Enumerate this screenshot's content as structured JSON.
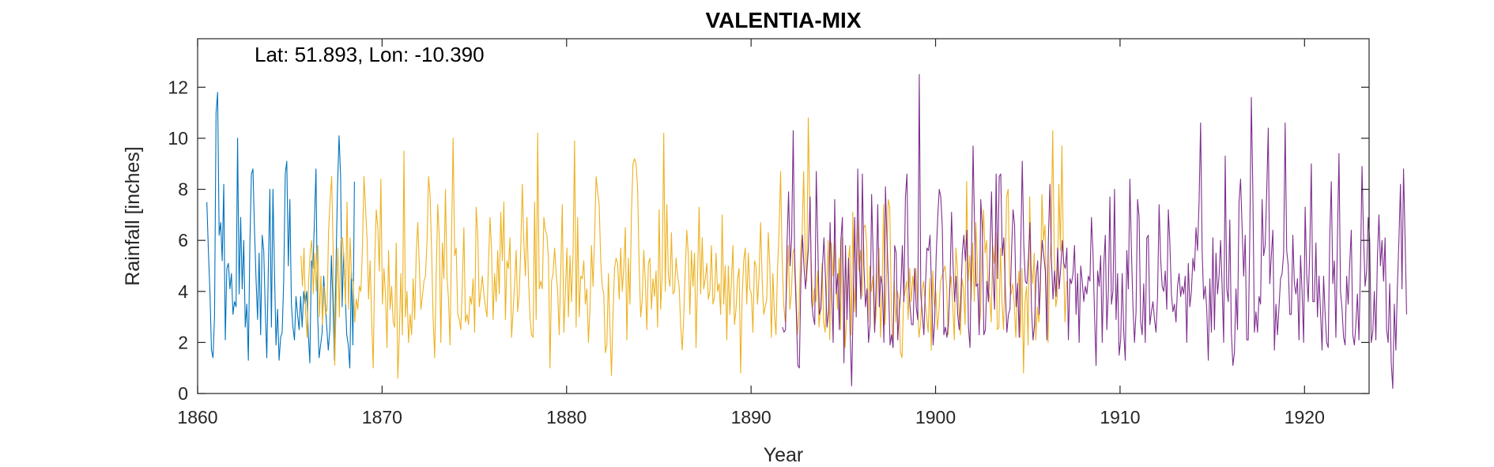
{
  "chart_data": {
    "type": "line",
    "title": "VALENTIA-MIX",
    "annotation": "Lat: 51.893, Lon: -10.390",
    "xlabel": "Year",
    "ylabel": "Rainfall [inches]",
    "xlim": [
      1860,
      1923.5
    ],
    "ylim": [
      0,
      13.9
    ],
    "xticks": [
      1860,
      1870,
      1880,
      1890,
      1900,
      1910,
      1920
    ],
    "yticks": [
      0,
      2,
      4,
      6,
      8,
      10,
      12
    ],
    "grid": false,
    "box": true,
    "series": [
      {
        "color": "#0072BD",
        "x_start": 1860.5,
        "values": [
          7.5,
          5.6,
          4.0,
          1.7,
          1.4,
          3.0,
          11.0,
          11.8,
          6.2,
          6.7,
          5.2,
          8.2,
          2.1,
          4.9,
          5.1,
          4.1,
          4.7,
          3.1,
          3.6,
          3.4,
          10.0,
          3.9,
          6.9,
          4.1,
          6.0,
          2.6,
          3.5,
          1.3,
          5.9,
          8.6,
          8.8,
          6.4,
          4.5,
          2.9,
          5.5,
          2.3,
          6.2,
          5.6,
          3.3,
          1.4,
          4.9,
          8.0,
          2.6,
          8.0,
          4.8,
          1.9,
          3.3,
          1.3,
          2.2,
          2.4,
          4.4,
          8.6,
          9.1,
          5.0,
          7.6,
          3.5,
          2.6,
          2.1,
          3.8,
          3.1,
          2.5,
          3.8,
          2.6,
          4.0,
          3.5,
          4.0,
          2.3,
          1.2,
          5.2,
          4.9,
          6.8,
          8.8,
          3.2,
          1.4,
          1.9,
          2.4,
          4.6,
          3.6,
          2.6,
          1.7,
          2.5,
          5.4,
          3.6,
          1.3,
          4.9,
          8.1,
          10.1,
          8.5,
          3.4,
          5.5,
          3.9,
          2.3,
          1.9,
          1.0,
          4.8,
          1.9,
          8.3
        ]
      },
      {
        "color": "#EDB120",
        "x_start": 1865.6,
        "values": [
          5.4,
          4.2,
          5.7,
          3.2,
          2.2,
          4.4,
          5.5,
          6.0,
          3.9,
          5.5,
          4.0,
          5.8,
          3.0,
          4.6,
          2.7,
          4.2,
          3.1,
          3.3,
          6.4,
          7.6,
          8.5,
          5.4,
          1.1,
          3.8,
          5.7,
          3.0,
          6.0,
          6.1,
          5.3,
          3.5,
          7.5,
          3.3,
          6.1,
          4.5,
          4.4,
          2.8,
          3.7,
          3.3,
          4.2,
          4.0,
          5.7,
          8.5,
          7.3,
          6.1,
          3.7,
          5.2,
          2.9,
          1.0,
          5.1,
          7.2,
          6.5,
          4.8,
          8.4,
          3.5,
          4.9,
          3.9,
          1.8,
          5.6,
          3.3,
          4.2,
          2.8,
          2.6,
          5.9,
          0.6,
          2.3,
          4.7,
          2.3,
          9.5,
          3.0,
          4.0,
          2.0,
          3.1,
          2.3,
          4.5,
          2.9,
          5.5,
          6.7,
          5.0,
          3.3,
          3.8,
          4.4,
          4.6,
          5.9,
          8.5,
          7.8,
          5.6,
          2.9,
          1.4,
          4.7,
          7.4,
          6.1,
          2.0,
          5.9,
          4.5,
          8.0,
          4.6,
          3.7,
          1.9,
          6.2,
          10.0,
          5.4,
          5.7,
          3.1,
          2.9,
          2.5,
          4.3,
          6.5,
          2.8,
          3.1,
          2.7,
          3.8,
          3.5,
          4.5,
          2.4,
          7.3,
          6.2,
          3.4,
          4.0,
          4.6,
          3.9,
          3.4,
          3.0,
          5.1,
          6.9,
          5.6,
          2.9,
          4.7,
          3.6,
          5.6,
          3.9,
          7.1,
          5.2,
          7.5,
          2.9,
          5.2,
          4.9,
          6.1,
          2.2,
          3.2,
          4.3,
          5.6,
          3.2,
          3.9,
          5.7,
          8.2,
          5.9,
          4.6,
          6.9,
          4.5,
          3.0,
          2.3,
          2.2,
          7.5,
          2.9,
          10.2,
          4.1,
          4.4,
          4.1,
          6.9,
          6.4,
          6.2,
          5.3,
          1.0,
          4.4,
          4.7,
          5.7,
          4.7,
          4.0,
          2.3,
          4.8,
          7.4,
          2.4,
          3.9,
          5.7,
          3.0,
          5.4,
          3.6,
          5.5,
          9.9,
          2.6,
          6.9,
          3.0,
          4.6,
          4.5,
          5.2,
          3.5,
          4.1,
          2.0,
          3.3,
          5.8,
          4.2,
          6.1,
          8.5,
          7.9,
          7.4,
          5.2,
          4.2,
          3.9,
          1.6,
          1.9,
          4.7,
          2.6,
          0.7,
          3.1,
          4.9,
          5.3,
          5.1,
          3.7,
          5.7,
          4.0,
          4.9,
          6.5,
          2.1,
          5.3,
          3.5,
          7.1,
          9.0,
          9.2,
          9.0,
          8.0,
          5.0,
          3.0,
          3.7,
          5.6,
          4.4,
          2.5,
          5.1,
          5.3,
          3.3,
          4.5,
          3.8,
          4.8,
          2.6,
          7.2,
          3.3,
          4.7,
          10.2,
          4.0,
          7.4,
          4.6,
          4.2,
          6.3,
          3.9,
          4.0,
          5.3,
          4.6,
          4.2,
          2.7,
          1.7,
          3.0,
          4.9,
          6.4,
          5.4,
          3.1,
          5.6,
          4.2,
          5.5,
          1.8,
          4.6,
          7.3,
          3.9,
          6.1,
          4.1,
          4.5,
          5.1,
          3.7,
          4.0,
          5.8,
          3.5,
          3.8,
          5.5,
          4.0,
          4.3,
          3.1,
          7.0,
          3.5,
          5.0,
          2.1,
          5.0,
          3.1,
          4.4,
          5.8,
          2.7,
          3.3,
          4.5,
          4.9,
          0.8,
          3.8,
          5.2,
          5.7,
          3.5,
          5.5,
          4.1,
          3.9,
          2.4,
          5.2,
          5.0,
          3.5,
          4.6,
          6.7,
          4.5,
          3.1,
          3.4,
          3.7,
          6.3,
          5.0,
          2.2,
          4.7,
          3.1,
          2.3,
          4.9,
          6.3,
          8.7,
          5.3,
          3.5,
          2.8,
          4.2,
          5.8,
          3.3,
          3.9,
          5.5,
          5.7,
          4.1,
          2.3,
          3.2,
          5.6,
          6.3,
          8.7,
          5.4,
          4.4,
          10.8,
          7.3,
          5.0,
          3.4,
          4.1,
          3.6,
          4.8,
          2.6,
          3.4,
          5.1,
          2.8,
          2.4,
          4.1,
          6.0,
          2.1,
          5.9,
          4.6,
          6.0,
          4.6,
          3.3,
          5.3,
          2.5,
          6.1,
          4.4,
          1.8,
          3.0,
          5.1,
          5.8,
          2.3,
          7.1,
          3.2,
          4.4,
          6.8,
          4.8,
          5.6,
          3.8,
          6.5,
          6.6,
          5.9,
          2.8,
          5.0,
          4.0,
          4.6,
          2.5,
          3.0,
          4.3,
          5.7,
          2.2,
          4.0,
          7.4,
          2.7,
          4.9,
          7.6,
          7.3,
          3.4,
          1.8,
          4.4,
          2.8,
          4.0,
          3.6,
          1.6,
          1.4,
          3.7,
          4.0,
          4.4,
          2.9,
          4.9,
          3.6,
          4.6,
          4.0,
          4.9,
          3.7,
          2.2,
          2.7,
          4.0,
          4.4,
          3.6,
          3.0,
          2.4,
          4.5,
          1.7,
          4.8,
          3.4,
          4.0,
          2.5,
          3.2,
          4.4,
          4.6,
          4.8,
          5.0,
          4.2,
          2.3,
          4.1,
          4.6,
          3.4,
          2.1,
          5.7,
          4.9,
          3.2,
          2.3,
          4.5,
          4.1,
          2.7,
          8.3,
          4.4,
          5.4,
          3.7,
          5.9,
          3.6,
          6.7,
          5.1,
          2.5,
          3.1,
          5.4,
          7.2,
          5.5,
          6.0,
          4.0,
          3.8,
          2.8,
          5.8,
          5.1,
          6.3,
          2.5,
          2.6,
          5.7,
          3.6,
          2.5,
          4.7,
          7.7,
          8.0,
          4.3,
          3.9,
          4.3,
          3.5,
          2.2,
          4.0,
          4.8,
          2.2,
          4.9,
          0.8,
          3.6,
          4.2,
          1.9,
          7.7,
          5.0,
          4.3,
          5.5,
          2.1,
          3.4,
          2.8,
          4.1,
          7.8,
          6.0,
          6.6,
          3.6,
          2.0,
          5.0,
          6.1,
          10.3,
          5.5,
          3.4,
          3.8,
          8.2,
          5.6,
          9.7,
          5.3,
          2.8,
          4.4
        ]
      },
      {
        "color": "#7E2F8E",
        "x_start": 1891.7,
        "values": [
          2.6,
          2.4,
          2.5,
          5.9,
          7.9,
          5.0,
          6.1,
          10.3,
          5.0,
          3.2,
          1.1,
          1.0,
          4.5,
          6.2,
          5.0,
          4.1,
          4.9,
          5.8,
          7.7,
          3.6,
          3.0,
          2.7,
          8.7,
          5.8,
          3.1,
          3.3,
          4.9,
          6.1,
          4.5,
          2.6,
          3.2,
          6.7,
          4.0,
          2.0,
          7.6,
          3.9,
          4.7,
          2.5,
          6.0,
          6.9,
          1.2,
          5.8,
          2.9,
          5.3,
          2.5,
          0.3,
          3.4,
          6.9,
          3.0,
          8.8,
          5.2,
          3.7,
          8.6,
          5.0,
          3.4,
          4.1,
          2.0,
          2.7,
          7.8,
          5.4,
          2.4,
          4.4,
          7.4,
          3.4,
          4.6,
          4.2,
          2.0,
          8.1,
          6.0,
          4.2,
          1.9,
          2.3,
          1.8,
          5.8,
          5.5,
          2.1,
          3.2,
          4.1,
          5.8,
          3.6,
          7.7,
          8.6,
          4.3,
          3.4,
          2.7,
          2.7,
          4.9,
          3.4,
          2.9,
          12.5,
          3.9,
          3.1,
          2.3,
          4.2,
          5.7,
          5.6,
          6.2,
          4.1,
          1.9,
          2.8,
          5.4,
          6.9,
          8.0,
          7.7,
          6.5,
          2.3,
          2.6,
          2.2,
          2.8,
          4.4,
          7.1,
          5.0,
          3.6,
          4.6,
          3.1,
          2.5,
          3.7,
          5.5,
          6.2,
          5.2,
          6.4,
          2.6,
          1.8,
          5.6,
          9.7,
          6.4,
          4.2,
          4.3,
          2.3,
          7.6,
          6.5,
          2.3,
          2.5,
          4.4,
          3.6,
          5.6,
          7.9,
          4.6,
          3.3,
          8.6,
          4.5,
          8.5,
          8.6,
          5.4,
          6.1,
          4.0,
          2.4,
          3.1,
          3.3,
          5.5,
          7.2,
          6.6,
          3.4,
          4.3,
          2.2,
          5.7,
          9.1,
          5.8,
          4.4,
          4.3,
          5.3,
          6.7,
          3.3,
          2.1,
          2.7,
          4.6,
          5.2,
          3.1,
          4.9,
          6.0,
          5.4,
          4.8,
          2.1,
          6.1,
          8.2,
          5.2,
          3.7,
          4.8,
          3.8,
          5.7,
          4.1,
          4.9,
          6.0,
          5.1,
          4.9,
          5.7,
          2.1,
          4.5,
          4.3,
          4.7,
          5.8,
          3.1,
          4.7,
          2.0,
          5.0,
          4.4,
          3.6,
          4.2,
          3.9,
          4.6,
          4.4,
          6.9,
          5.5,
          3.1,
          1.1,
          4.8,
          4.2,
          5.4,
          2.0,
          5.0,
          6.2,
          2.5,
          4.0,
          7.7,
          3.5,
          4.0,
          8.0,
          2.9,
          4.7,
          1.5,
          2.1,
          4.7,
          2.4,
          1.3,
          5.6,
          4.1,
          8.4,
          5.6,
          3.4,
          2.0,
          3.2,
          7.6,
          6.9,
          2.8,
          2.3,
          4.3,
          2.0,
          6.1,
          6.2,
          2.7,
          3.2,
          3.6,
          2.9,
          2.4,
          3.8,
          7.4,
          5.3,
          4.2,
          4.0,
          4.8,
          3.3,
          7.2,
          5.9,
          3.9,
          3.2,
          3.5,
          2.8,
          4.2,
          4.7,
          3.8,
          4.2,
          3.9,
          4.6,
          2.0,
          5.1,
          3.4,
          4.0,
          5.3,
          4.8,
          6.5,
          5.6,
          7.5,
          10.6,
          5.6,
          3.7,
          4.2,
          3.3,
          1.3,
          4.5,
          2.4,
          6.1,
          2.5,
          5.5,
          3.9,
          4.6,
          6.0,
          4.2,
          2.0,
          9.3,
          4.1,
          3.6,
          6.8,
          2.4,
          1.1,
          1.6,
          4.1,
          2.5,
          7.5,
          8.4,
          6.5,
          4.6,
          6.2,
          2.1,
          2.1,
          6.2,
          11.6,
          7.8,
          2.4,
          3.2,
          2.4,
          3.8,
          3.5,
          7.6,
          5.4,
          5.8,
          7.9,
          10.4,
          4.3,
          5.4,
          6.4,
          1.7,
          3.5,
          2.3,
          3.4,
          4.5,
          4.7,
          5.5,
          10.6,
          5.6,
          5.0,
          3.1,
          3.1,
          6.2,
          4.3,
          3.9,
          4.5,
          2.1,
          5.4,
          4.0,
          2.0,
          7.3,
          4.7,
          3.6,
          5.6,
          9.0,
          3.6,
          3.6,
          5.9,
          3.0,
          4.6,
          3.2,
          1.7,
          4.6,
          3.1,
          2.0,
          1.8,
          6.1,
          8.3,
          4.3,
          5.2,
          2.2,
          6.1,
          9.4,
          4.0,
          3.3,
          2.2,
          1.9,
          4.6,
          3.5,
          5.1,
          6.4,
          2.3,
          1.9,
          2.7,
          3.9,
          2.1,
          5.0,
          8.9,
          6.1,
          4.2,
          4.8,
          6.9,
          6.0,
          2.0,
          2.4,
          4.0,
          2.1,
          5.3,
          7.0,
          5.0,
          6.0,
          4.4,
          6.1,
          2.5,
          2.0,
          4.3,
          1.2,
          0.2,
          3.5,
          1.7,
          4.2,
          6.0,
          8.2,
          4.1,
          8.8,
          6.1,
          3.1
        ]
      }
    ]
  }
}
